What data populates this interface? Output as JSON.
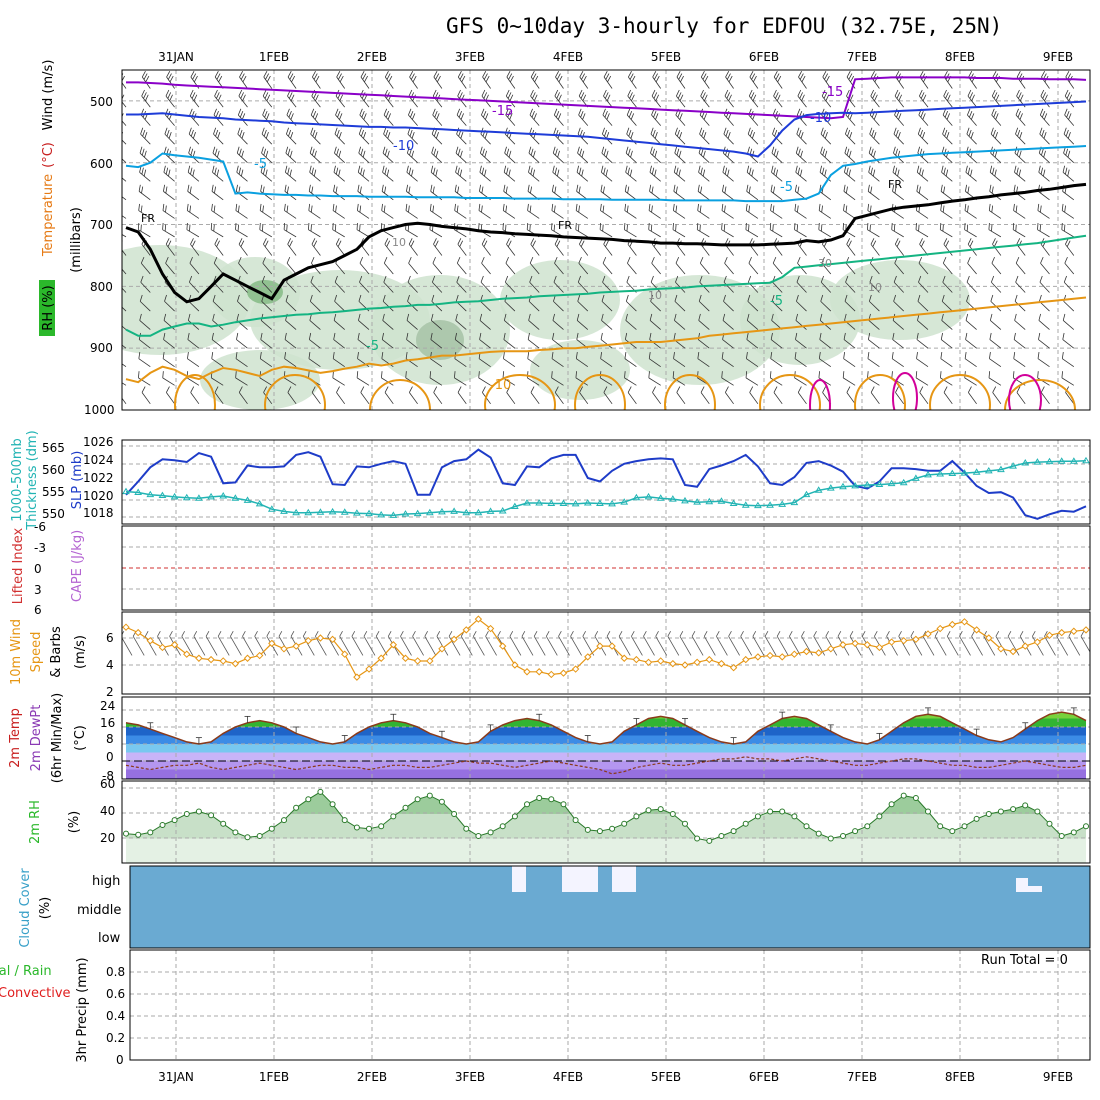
{
  "chart_data": {
    "type": "meteogram",
    "title": "GFS 0~10day 3-hourly for EDFOU (32.75E, 25N)",
    "date_labels": [
      "31JAN",
      "1FEB",
      "2FEB",
      "3FEB",
      "4FEB",
      "5FEB",
      "6FEB",
      "7FEB",
      "8FEB",
      "9FEB"
    ],
    "time_axis": {
      "step_hours": 3,
      "points": 80
    },
    "colors": {
      "temp_purple": "#8a00c8",
      "temp_blue": "#1e3cd8",
      "temp_cyan": "#0aa0e0",
      "temp_green": "#14b482",
      "temp_orange": "#e69614",
      "temp_magenta": "#d2009a",
      "freezing": "#000000",
      "rh_fill": "#cfe3cf",
      "slp": "#1e3cc8",
      "thickness": "#22b4b4",
      "wind_speed": "#e69614",
      "lifted_zero": "#d23232",
      "cloud": "#6aaad2",
      "rh2m": "#5ab45a"
    },
    "panels": [
      {
        "id": "upper_air",
        "ylabel": "(millibars)",
        "side_labels": [
          "RH (%)",
          "Temperature",
          "(°C)",
          "Wind (m/s)"
        ],
        "yticks": [
          "500",
          "600",
          "700",
          "800",
          "900",
          "1000"
        ],
        "contour_labels": [
          "-15",
          "-15",
          "-10",
          "-10",
          "-5",
          "-5",
          "FR",
          "FR",
          "FR",
          "-5",
          "-5",
          "-10",
          "10",
          "10",
          "10",
          "30"
        ],
        "temperature_levels_mb": {
          "m15": [
            470,
            470,
            471,
            472,
            474,
            475,
            476,
            477,
            478,
            479,
            480,
            481,
            482,
            483,
            484,
            485,
            486,
            487,
            488,
            489,
            490,
            491,
            492,
            493,
            494,
            495,
            496,
            497,
            498,
            499,
            500,
            501,
            502,
            503,
            504,
            505,
            506,
            507,
            508,
            509,
            510,
            511,
            512,
            513,
            514,
            515,
            516,
            517,
            518,
            519,
            520,
            521,
            522,
            523,
            524,
            525,
            526,
            527,
            528,
            526,
            465,
            464,
            463,
            462,
            462,
            462,
            462,
            462,
            462,
            462,
            463,
            463,
            463,
            464,
            464,
            464,
            465,
            465,
            465,
            466
          ],
          "m10": [
            522,
            522,
            521,
            520,
            522,
            524,
            526,
            527,
            528,
            530,
            531,
            532,
            533,
            535,
            536,
            537,
            538,
            539,
            540,
            541,
            542,
            542,
            543,
            543,
            544,
            545,
            546,
            547,
            548,
            549,
            550,
            551,
            552,
            553,
            554,
            555,
            556,
            557,
            558,
            560,
            562,
            564,
            566,
            568,
            570,
            572,
            574,
            576,
            578,
            580,
            582,
            585,
            590,
            572,
            548,
            530,
            523,
            521,
            520,
            519,
            520,
            519,
            518,
            517,
            516,
            515,
            514,
            513,
            512,
            511,
            510,
            509,
            508,
            507,
            506,
            505,
            504,
            503,
            502,
            501
          ],
          "m5": [
            605,
            607,
            600,
            585,
            588,
            590,
            592,
            595,
            598,
            650,
            648,
            650,
            651,
            652,
            652,
            653,
            653,
            654,
            654,
            654,
            655,
            655,
            655,
            655,
            656,
            656,
            656,
            656,
            657,
            657,
            657,
            657,
            658,
            658,
            658,
            658,
            659,
            659,
            659,
            659,
            660,
            660,
            660,
            660,
            660,
            661,
            661,
            661,
            661,
            661,
            661,
            662,
            662,
            662,
            662,
            660,
            658,
            650,
            620,
            605,
            602,
            598,
            595,
            592,
            590,
            588,
            586,
            585,
            584,
            583,
            582,
            581,
            580,
            579,
            578,
            577,
            576,
            575,
            574,
            573
          ],
          "fr": [
            705,
            712,
            740,
            780,
            810,
            825,
            820,
            800,
            780,
            790,
            800,
            810,
            820,
            790,
            780,
            770,
            765,
            760,
            750,
            740,
            720,
            710,
            705,
            700,
            698,
            700,
            703,
            705,
            707,
            710,
            712,
            713,
            715,
            716,
            717,
            718,
            720,
            721,
            722,
            723,
            724,
            726,
            727,
            728,
            730,
            730,
            731,
            731,
            732,
            733,
            733,
            733,
            733,
            732,
            731,
            730,
            726,
            728,
            725,
            718,
            690,
            685,
            680,
            675,
            672,
            670,
            668,
            665,
            662,
            660,
            657,
            655,
            652,
            650,
            648,
            645,
            643,
            640,
            637,
            635
          ],
          "p5": [
            870,
            880,
            880,
            870,
            865,
            860,
            860,
            865,
            862,
            858,
            855,
            852,
            850,
            848,
            846,
            845,
            843,
            842,
            840,
            838,
            836,
            835,
            833,
            832,
            830,
            830,
            828,
            826,
            825,
            824,
            822,
            820,
            819,
            818,
            816,
            815,
            814,
            813,
            812,
            810,
            809,
            808,
            807,
            805,
            804,
            803,
            802,
            800,
            799,
            798,
            797,
            796,
            795,
            794,
            785,
            770,
            768,
            766,
            764,
            762,
            760,
            758,
            756,
            754,
            752,
            750,
            748,
            746,
            744,
            742,
            740,
            738,
            736,
            734,
            732,
            730,
            727,
            724,
            721,
            718
          ],
          "p10": [
            950,
            955,
            940,
            930,
            935,
            945,
            950,
            940,
            932,
            935,
            940,
            945,
            935,
            930,
            932,
            936,
            940,
            937,
            933,
            930,
            925,
            928,
            925,
            920,
            918,
            915,
            912,
            912,
            910,
            908,
            906,
            905,
            905,
            905,
            903,
            902,
            900,
            900,
            898,
            896,
            894,
            892,
            890,
            890,
            890,
            888,
            886,
            884,
            880,
            878,
            876,
            874,
            872,
            870,
            868,
            866,
            864,
            862,
            860,
            858,
            856,
            854,
            852,
            850,
            848,
            846,
            844,
            842,
            840,
            838,
            836,
            834,
            832,
            830,
            828,
            826,
            824,
            822,
            820,
            818
          ]
        },
        "rh_levels": [
          10,
          30
        ]
      },
      {
        "id": "slp_thickness",
        "side_labels": [
          "1000-500mb",
          "Thickness (dm)",
          "SLP (mb)"
        ],
        "left_ticks": [
          "550",
          "555",
          "560",
          "565"
        ],
        "right_ticks": [
          "1018",
          "1020",
          "1022",
          "1024",
          "1026"
        ],
        "slp_mb": [
          1020.5,
          1022,
          1023.6,
          1024.5,
          1024.4,
          1024.2,
          1025.2,
          1024.8,
          1021.8,
          1021.9,
          1023.8,
          1023.6,
          1023.6,
          1023.7,
          1025,
          1025.3,
          1024.8,
          1021.7,
          1021.6,
          1023.7,
          1023.6,
          1024,
          1024.3,
          1024,
          1020.5,
          1020.5,
          1023.6,
          1024.3,
          1024.5,
          1025.6,
          1024.7,
          1021.8,
          1021.6,
          1023.7,
          1023.6,
          1024.6,
          1025,
          1025,
          1022.4,
          1022,
          1023.2,
          1024,
          1024.3,
          1024.5,
          1024.6,
          1024.5,
          1021.6,
          1021.4,
          1023.4,
          1023.8,
          1024.3,
          1025,
          1023.7,
          1021.8,
          1021.6,
          1022.5,
          1024.1,
          1024.3,
          1023.8,
          1023.1,
          1021.5,
          1021.2,
          1022,
          1023.5,
          1023.5,
          1023.4,
          1023.2,
          1023.2,
          1024.3,
          1023,
          1021.5,
          1020.7,
          1020.8,
          1020.2,
          1018.2,
          1017.8,
          1018.3,
          1018.7,
          1018.6,
          1019.2
        ],
        "thickness_dm": [
          556,
          555.8,
          555.3,
          555.1,
          554.8,
          554.6,
          554.5,
          554.8,
          555,
          554.5,
          554,
          553.2,
          552,
          551.5,
          551.2,
          551.2,
          551.3,
          551.4,
          551.3,
          551.1,
          551,
          550.7,
          550.6,
          550.9,
          551,
          551.2,
          551.4,
          551.5,
          551.2,
          551.2,
          551.5,
          551.6,
          552.6,
          553.4,
          553.4,
          553.3,
          553.3,
          553.2,
          553.4,
          553.3,
          553.2,
          553.6,
          554.6,
          554.8,
          554.5,
          554.3,
          553.9,
          553.6,
          553.7,
          553.8,
          553.3,
          552.9,
          552.8,
          552.9,
          553.1,
          553.5,
          555.3,
          556.3,
          556.8,
          557.1,
          557.3,
          557.5,
          557.6,
          557.8,
          558,
          559,
          559.8,
          560,
          560.1,
          560.2,
          560.4,
          560.7,
          561,
          561.8,
          562.5,
          562.7,
          562.8,
          562.9,
          562.9,
          563
        ]
      },
      {
        "id": "lifted_cape",
        "side_labels": [
          "Lifted Index",
          "CAPE (J/kg)"
        ],
        "left_ticks": [
          "-6",
          "-3",
          "0",
          "3",
          "6"
        ],
        "lifted_zero_line": 0
      },
      {
        "id": "wind10m",
        "side_labels": [
          "10m Wind",
          "Speed",
          "& Barbs",
          "(m/s)"
        ],
        "yticks": [
          "2",
          "4",
          "6"
        ],
        "wind_speed_ms": [
          6.8,
          6.4,
          5.8,
          5.3,
          5.5,
          4.8,
          4.5,
          4.4,
          4.3,
          4.1,
          4.5,
          4.7,
          5.6,
          5.2,
          5.4,
          5.8,
          6,
          5.9,
          4.8,
          3.1,
          3.7,
          4.5,
          5.5,
          4.5,
          4.3,
          4.3,
          5.2,
          5.9,
          6.6,
          7.4,
          6.7,
          5.4,
          4,
          3.5,
          3.5,
          3.3,
          3.4,
          3.7,
          4.6,
          5.4,
          5.4,
          4.5,
          4.4,
          4.2,
          4.3,
          4.1,
          4,
          4.2,
          4.4,
          4.1,
          3.8,
          4.4,
          4.6,
          4.7,
          4.6,
          4.8,
          5,
          4.9,
          5.2,
          5.5,
          5.6,
          5.5,
          5.3,
          5.7,
          5.8,
          5.9,
          6.3,
          6.7,
          7,
          7.2,
          6.6,
          6,
          5.2,
          5,
          5.4,
          5.7,
          6.2,
          6.4,
          6.5,
          6.6
        ]
      },
      {
        "id": "temp2m",
        "side_labels": [
          "2m Temp",
          "2m DewPt",
          "(6hr Min/Max)",
          "(°C)"
        ],
        "yticks": [
          "-8",
          "0",
          "8",
          "16",
          "24"
        ],
        "temp_c": [
          18,
          17,
          15,
          13,
          11,
          9,
          8,
          9,
          13,
          16,
          18,
          19,
          18,
          16,
          13,
          11,
          9,
          8,
          9,
          13,
          16,
          18,
          19,
          18,
          16,
          13,
          11,
          9,
          8,
          9,
          14,
          17,
          19,
          20,
          19,
          17,
          14,
          11,
          9,
          8,
          9,
          14,
          17,
          20,
          21,
          20,
          17,
          14,
          11,
          9,
          8,
          9,
          14,
          17,
          20,
          21,
          20,
          17,
          14,
          11,
          9,
          8,
          10,
          14,
          18,
          21,
          22,
          21,
          18,
          15,
          12,
          10,
          9,
          11,
          15,
          19,
          22,
          23,
          22,
          19
        ],
        "dewpoint_c": [
          -2,
          -3,
          -4,
          -3,
          -2,
          -2,
          -1,
          -3,
          -4,
          -3,
          -2,
          -1,
          -2,
          -3,
          -4,
          -3,
          -2,
          -2,
          -3,
          -3,
          -4,
          -3,
          -2,
          -2,
          -3,
          -3,
          -2,
          -1,
          0,
          -1,
          -1,
          -2,
          -3,
          -2,
          -1,
          0,
          -1,
          -2,
          -3,
          -4,
          -6,
          -5,
          -3,
          -2,
          -1,
          -2,
          -2,
          -1,
          0,
          1,
          1,
          2,
          1,
          1,
          0,
          1,
          2,
          1,
          0,
          -1,
          -2,
          -2,
          -1,
          0,
          1,
          1,
          0,
          -1,
          -2,
          -2,
          -3,
          -3,
          -2,
          -1,
          0,
          -1,
          -2,
          -3,
          -3,
          -2
        ]
      },
      {
        "id": "rh2m",
        "side_labels": [
          "2m RH",
          "(%)"
        ],
        "yticks": [
          "20",
          "40",
          "60"
        ],
        "rh_pct": [
          24,
          23,
          25,
          31,
          35,
          40,
          42,
          39,
          32,
          25,
          21,
          22,
          28,
          35,
          45,
          52,
          58,
          48,
          35,
          29,
          28,
          30,
          38,
          45,
          52,
          55,
          50,
          40,
          28,
          22,
          25,
          30,
          38,
          48,
          53,
          52,
          48,
          35,
          27,
          26,
          28,
          32,
          38,
          43,
          44,
          40,
          32,
          20,
          18,
          22,
          26,
          32,
          38,
          42,
          42,
          38,
          30,
          24,
          20,
          22,
          26,
          30,
          38,
          48,
          55,
          53,
          42,
          30,
          26,
          30,
          36,
          40,
          42,
          44,
          47,
          42,
          32,
          22,
          25,
          30
        ]
      },
      {
        "id": "cloud",
        "side_labels": [
          "Cloud Cover",
          "(%)"
        ],
        "levels": [
          "high",
          "middle",
          "low"
        ]
      },
      {
        "id": "precip",
        "side_labels": [
          "Total / Rain",
          "Convective",
          "3hr Precip (mm)"
        ],
        "yticks": [
          "0",
          "0.2",
          "0.4",
          "0.6",
          "0.8"
        ],
        "run_total": "Run Total = 0"
      }
    ]
  }
}
